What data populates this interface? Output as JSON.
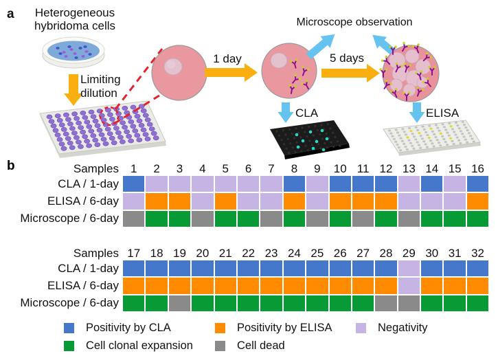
{
  "colors": {
    "arrow_yellow": "#F9AF10",
    "arrow_blue": "#66C3EF",
    "dashed_red": "#E62129",
    "cell_body_pink": "#E8989E",
    "cell_inner_pink": "#E3C2CE",
    "petri_medium_blue": "#7FA9D9",
    "plate_well_purple": "#8F6FD0",
    "cla_plate_black": "#1B1B1B",
    "cla_dot_cyan": "#2BD8C6",
    "elisa_well_yellow": "#DEDE30"
  },
  "panel_a": {
    "label": "a",
    "heterogeneous_line1": "Heterogeneous",
    "heterogeneous_line2": "hybridoma cells",
    "limiting_line1": "Limiting",
    "limiting_line2": "dilution",
    "one_day": "1 day",
    "five_days": "5 days",
    "microscope_observation": "Microscope observation",
    "cla": "CLA",
    "elisa": "ELISA"
  },
  "panel_b": {
    "label": "b",
    "samples_label": "Samples",
    "cell_colors": {
      "cla": {
        "positive": "#4577CB",
        "negative": "#C5B4E4"
      },
      "elisa": {
        "positive": "#FF8C00",
        "negative": "#C5B4E4"
      },
      "microscope": {
        "expansion": "#089A35",
        "dead": "#8A8A8A"
      }
    },
    "grids": [
      {
        "sample_numbers": [
          1,
          2,
          3,
          4,
          5,
          6,
          7,
          8,
          9,
          10,
          11,
          12,
          13,
          14,
          15,
          16
        ],
        "rows": [
          {
            "label": "CLA / 1-day",
            "type": "cla",
            "cells": [
              "positive",
              "negative",
              "negative",
              "negative",
              "negative",
              "negative",
              "negative",
              "positive",
              "negative",
              "positive",
              "positive",
              "positive",
              "negative",
              "positive",
              "negative",
              "positive"
            ]
          },
          {
            "label": "ELISA / 6-day",
            "type": "elisa",
            "cells": [
              "negative",
              "positive",
              "positive",
              "negative",
              "positive",
              "negative",
              "negative",
              "positive",
              "negative",
              "positive",
              "positive",
              "positive",
              "negative",
              "negative",
              "negative",
              "positive"
            ]
          },
          {
            "label": "Microscope / 6-day",
            "type": "microscope",
            "cells": [
              "dead",
              "expansion",
              "expansion",
              "dead",
              "expansion",
              "expansion",
              "dead",
              "expansion",
              "dead",
              "expansion",
              "dead",
              "expansion",
              "dead",
              "expansion",
              "expansion",
              "expansion"
            ]
          }
        ]
      },
      {
        "sample_numbers": [
          17,
          18,
          19,
          20,
          21,
          22,
          23,
          24,
          25,
          26,
          27,
          28,
          29,
          30,
          31,
          32
        ],
        "rows": [
          {
            "label": "CLA / 1-day",
            "type": "cla",
            "cells": [
              "positive",
              "positive",
              "positive",
              "positive",
              "positive",
              "positive",
              "positive",
              "positive",
              "positive",
              "positive",
              "positive",
              "positive",
              "negative",
              "positive",
              "positive",
              "positive"
            ]
          },
          {
            "label": "ELISA / 6-day",
            "type": "elisa",
            "cells": [
              "positive",
              "positive",
              "positive",
              "positive",
              "positive",
              "positive",
              "positive",
              "positive",
              "positive",
              "positive",
              "positive",
              "positive",
              "negative",
              "positive",
              "positive",
              "positive"
            ]
          },
          {
            "label": "Microscope / 6-day",
            "type": "microscope",
            "cells": [
              "expansion",
              "expansion",
              "dead",
              "expansion",
              "expansion",
              "expansion",
              "expansion",
              "expansion",
              "expansion",
              "expansion",
              "expansion",
              "dead",
              "dead",
              "expansion",
              "expansion",
              "expansion"
            ]
          }
        ]
      }
    ],
    "legend": [
      {
        "label": "Positivity by CLA",
        "color": "#4577CB"
      },
      {
        "label": "Positivity by ELISA",
        "color": "#FF8C00"
      },
      {
        "label": "Negativity",
        "color": "#C5B4E4"
      },
      {
        "label": "Cell clonal expansion",
        "color": "#089A35"
      },
      {
        "label": "Cell dead",
        "color": "#8A8A8A"
      }
    ]
  }
}
